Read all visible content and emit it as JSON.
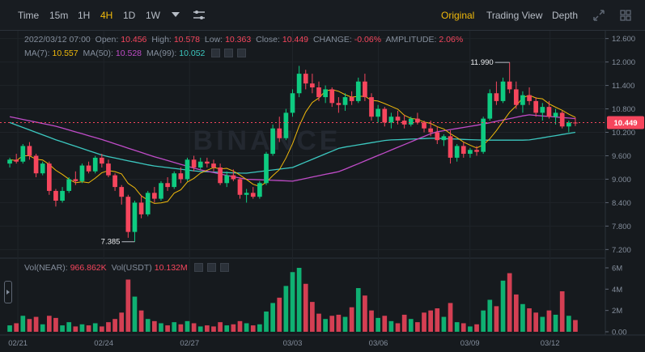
{
  "toolbar": {
    "intervals": [
      "Time",
      "15m",
      "1H",
      "4H",
      "1D",
      "1W"
    ],
    "active_interval": "4H",
    "views": [
      "Original",
      "Trading View",
      "Depth"
    ],
    "active_view": "Original"
  },
  "info": {
    "date": "2022/03/12 07:00",
    "open_label": "Open:",
    "open": "10.456",
    "high_label": "High:",
    "high": "10.578",
    "low_label": "Low:",
    "low": "10.363",
    "close_label": "Close:",
    "close": "10.449",
    "change_label": "CHANGE:",
    "change": "-0.06%",
    "amp_label": "AMPLITUDE:",
    "amp": "2.06%",
    "ma7_label": "MA(7):",
    "ma7": "10.557",
    "ma50_label": "MA(50):",
    "ma50": "10.528",
    "ma99_label": "MA(99):",
    "ma99": "10.052",
    "vol_label": "Vol(NEAR):",
    "vol": "966.862K",
    "volusdt_label": "Vol(USDT)",
    "volusdt": "10.132M"
  },
  "colors": {
    "up": "#0ecb81",
    "down": "#f6465d",
    "ma7": "#f0b90b",
    "ma50": "#c04cc8",
    "ma99": "#3cc8c0",
    "accent": "#f0b90b"
  },
  "chart_data": {
    "type": "candlestick",
    "price_ylim": [
      7.0,
      12.8
    ],
    "price_ticks": [
      "12.600",
      "12.000",
      "11.400",
      "10.800",
      "10.200",
      "9.600",
      "9.000",
      "8.400",
      "7.800",
      "7.200"
    ],
    "volume_ticks": [
      "6M",
      "4M",
      "2M",
      "0.00"
    ],
    "volume_ylim": [
      0,
      6
    ],
    "x_ticks": [
      "02/21",
      "02/24",
      "02/27",
      "03/03",
      "03/06",
      "03/09",
      "03/12"
    ],
    "last_price": "10.449",
    "annotations": {
      "high": "11.990",
      "low": "7.385"
    },
    "candles": [
      [
        9.4,
        9.55,
        9.3,
        9.5
      ],
      [
        9.5,
        9.65,
        9.4,
        9.45
      ],
      [
        9.45,
        9.9,
        9.4,
        9.85
      ],
      [
        9.85,
        9.95,
        9.5,
        9.6
      ],
      [
        9.6,
        9.65,
        9.05,
        9.15
      ],
      [
        9.15,
        9.45,
        9.1,
        9.4
      ],
      [
        9.4,
        9.45,
        8.6,
        8.7
      ],
      [
        8.7,
        8.75,
        8.3,
        8.45
      ],
      [
        8.45,
        8.8,
        8.4,
        8.7
      ],
      [
        8.7,
        9.05,
        8.65,
        9.0
      ],
      [
        9.0,
        9.2,
        8.85,
        8.95
      ],
      [
        8.95,
        9.4,
        8.9,
        9.35
      ],
      [
        9.35,
        9.45,
        9.15,
        9.2
      ],
      [
        9.2,
        9.6,
        9.15,
        9.55
      ],
      [
        9.55,
        9.65,
        9.3,
        9.4
      ],
      [
        9.4,
        9.5,
        9.05,
        9.1
      ],
      [
        9.1,
        9.15,
        8.7,
        8.8
      ],
      [
        8.8,
        8.85,
        8.35,
        8.55
      ],
      [
        8.55,
        8.6,
        7.5,
        7.65
      ],
      [
        7.65,
        8.45,
        7.4,
        8.4
      ],
      [
        8.4,
        8.6,
        8.0,
        8.1
      ],
      [
        8.1,
        8.7,
        8.05,
        8.65
      ],
      [
        8.65,
        8.8,
        8.4,
        8.5
      ],
      [
        8.5,
        8.95,
        8.45,
        8.9
      ],
      [
        8.9,
        9.05,
        8.7,
        8.8
      ],
      [
        8.8,
        9.2,
        8.75,
        9.15
      ],
      [
        9.15,
        9.3,
        8.9,
        9.0
      ],
      [
        9.0,
        9.55,
        8.95,
        9.5
      ],
      [
        9.5,
        9.6,
        9.2,
        9.3
      ],
      [
        9.3,
        9.55,
        9.25,
        9.45
      ],
      [
        9.45,
        9.55,
        9.3,
        9.4
      ],
      [
        9.4,
        9.5,
        9.2,
        9.3
      ],
      [
        9.3,
        9.4,
        8.85,
        8.9
      ],
      [
        8.9,
        9.2,
        8.8,
        9.1
      ],
      [
        9.1,
        9.25,
        8.95,
        9.0
      ],
      [
        9.0,
        9.05,
        8.5,
        8.6
      ],
      [
        8.6,
        8.75,
        8.4,
        8.65
      ],
      [
        8.65,
        8.8,
        8.5,
        8.55
      ],
      [
        8.55,
        8.95,
        8.5,
        8.9
      ],
      [
        8.9,
        9.7,
        8.85,
        9.65
      ],
      [
        9.65,
        10.4,
        9.6,
        10.3
      ],
      [
        10.3,
        10.6,
        9.95,
        10.05
      ],
      [
        10.05,
        10.8,
        10.0,
        10.7
      ],
      [
        10.7,
        11.3,
        10.6,
        11.2
      ],
      [
        11.2,
        11.9,
        11.1,
        11.7
      ],
      [
        11.7,
        11.8,
        11.3,
        11.45
      ],
      [
        11.45,
        11.7,
        11.2,
        11.35
      ],
      [
        11.35,
        11.5,
        11.0,
        11.1
      ],
      [
        11.1,
        11.4,
        10.95,
        11.3
      ],
      [
        11.3,
        11.35,
        10.85,
        10.95
      ],
      [
        10.95,
        11.1,
        10.7,
        10.9
      ],
      [
        10.9,
        11.2,
        10.75,
        11.1
      ],
      [
        11.1,
        11.25,
        10.9,
        11.0
      ],
      [
        11.0,
        11.6,
        10.95,
        11.5
      ],
      [
        11.5,
        11.7,
        11.0,
        11.1
      ],
      [
        11.1,
        11.2,
        10.5,
        10.6
      ],
      [
        10.6,
        10.9,
        10.45,
        10.8
      ],
      [
        10.8,
        10.85,
        10.35,
        10.45
      ],
      [
        10.45,
        10.7,
        10.3,
        10.6
      ],
      [
        10.6,
        10.75,
        10.4,
        10.5
      ],
      [
        10.5,
        10.65,
        10.3,
        10.4
      ],
      [
        10.4,
        10.6,
        10.35,
        10.55
      ],
      [
        10.55,
        10.7,
        10.4,
        10.45
      ],
      [
        10.45,
        10.5,
        10.2,
        10.3
      ],
      [
        10.3,
        10.5,
        10.1,
        10.2
      ],
      [
        10.2,
        10.35,
        9.9,
        10.0
      ],
      [
        10.0,
        10.15,
        9.85,
        10.1
      ],
      [
        10.1,
        10.25,
        9.4,
        9.55
      ],
      [
        9.55,
        9.9,
        9.45,
        9.85
      ],
      [
        9.85,
        9.95,
        9.55,
        9.65
      ],
      [
        9.65,
        9.8,
        9.55,
        9.75
      ],
      [
        9.75,
        9.85,
        9.6,
        9.7
      ],
      [
        9.7,
        10.6,
        9.65,
        10.55
      ],
      [
        10.55,
        11.3,
        10.5,
        11.2
      ],
      [
        11.2,
        11.5,
        10.9,
        11.0
      ],
      [
        11.0,
        11.6,
        10.95,
        11.5
      ],
      [
        11.5,
        11.99,
        11.2,
        11.3
      ],
      [
        11.3,
        11.5,
        10.8,
        10.9
      ],
      [
        10.9,
        11.25,
        10.7,
        11.15
      ],
      [
        11.15,
        11.35,
        10.9,
        11.0
      ],
      [
        11.0,
        11.1,
        10.6,
        10.7
      ],
      [
        10.7,
        10.95,
        10.5,
        10.85
      ],
      [
        10.85,
        11.0,
        10.55,
        10.6
      ],
      [
        10.6,
        10.8,
        10.4,
        10.7
      ],
      [
        10.7,
        10.75,
        10.3,
        10.35
      ],
      [
        10.35,
        10.5,
        10.2,
        10.45
      ],
      [
        10.45,
        10.58,
        10.36,
        10.449
      ]
    ],
    "volumes": [
      0.6,
      0.8,
      1.5,
      1.2,
      1.4,
      0.7,
      1.5,
      1.3,
      0.6,
      0.9,
      0.5,
      0.7,
      0.6,
      0.8,
      0.5,
      0.9,
      1.2,
      1.8,
      4.9,
      3.3,
      2.0,
      1.2,
      1.0,
      0.8,
      0.6,
      0.9,
      0.7,
      1.0,
      0.8,
      0.5,
      0.6,
      0.5,
      0.9,
      0.6,
      0.7,
      1.0,
      0.8,
      0.6,
      0.7,
      1.9,
      2.7,
      3.2,
      4.3,
      5.6,
      6.0,
      4.5,
      2.8,
      1.7,
      1.2,
      1.5,
      1.6,
      1.4,
      2.3,
      4.1,
      3.4,
      2.0,
      1.3,
      1.5,
      1.0,
      0.8,
      1.6,
      1.2,
      0.9,
      1.8,
      2.0,
      2.2,
      1.4,
      2.7,
      0.9,
      0.8,
      0.5,
      0.7,
      2.0,
      3.0,
      2.4,
      4.8,
      5.5,
      3.5,
      2.6,
      2.2,
      1.8,
      1.4,
      2.0,
      1.6,
      3.8,
      1.5,
      1.1
    ]
  }
}
